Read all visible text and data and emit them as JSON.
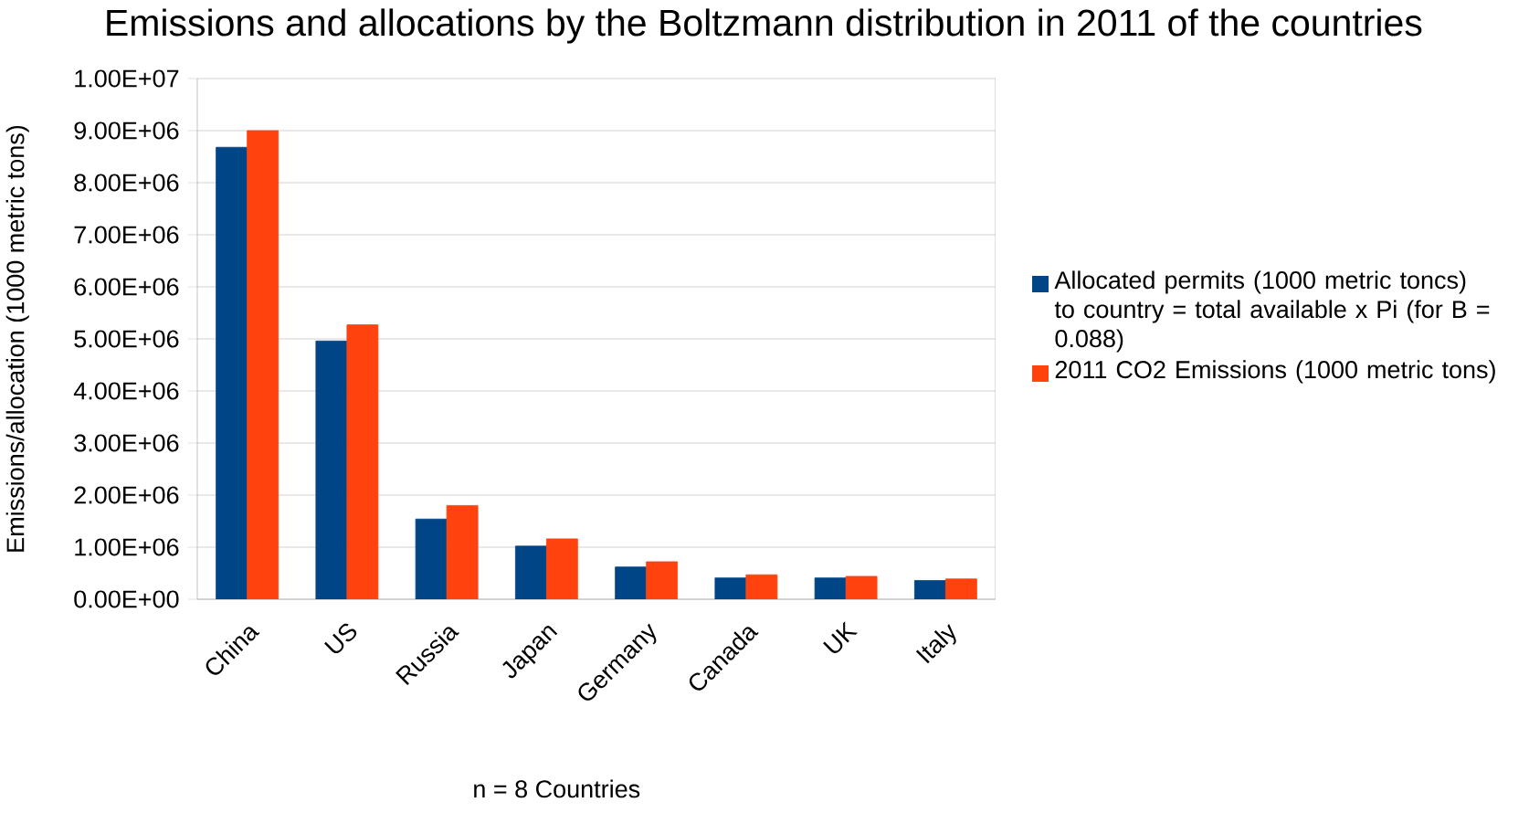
{
  "chart_data": {
    "type": "bar",
    "title": "Emissions and allocations by the Boltzmann distribution in 2011 of the countries",
    "xlabel": "n = 8 Countries",
    "ylabel": "Emissions/allocation (1000 metric tons)",
    "categories": [
      "China",
      "US",
      "Russia",
      "Japan",
      "Germany",
      "Canada",
      "UK",
      "Italy"
    ],
    "series": [
      {
        "name": "Allocated permits (1000 metric toncs) to country = total available x Pi (for B = 0.088)",
        "color": "#004586",
        "values": [
          8680000,
          4960000,
          1540000,
          1020000,
          620000,
          410000,
          410000,
          360000
        ]
      },
      {
        "name": "2011 CO2 Emissions (1000 metric tons)",
        "color": "#ff420e",
        "values": [
          9000000,
          5270000,
          1800000,
          1160000,
          720000,
          470000,
          440000,
          390000
        ]
      }
    ],
    "ylim": [
      0,
      10000000
    ],
    "yticks": [
      {
        "value": 0,
        "label": "0.00E+00"
      },
      {
        "value": 1000000,
        "label": "1.00E+06"
      },
      {
        "value": 2000000,
        "label": "2.00E+06"
      },
      {
        "value": 3000000,
        "label": "3.00E+06"
      },
      {
        "value": 4000000,
        "label": "4.00E+06"
      },
      {
        "value": 5000000,
        "label": "5.00E+06"
      },
      {
        "value": 6000000,
        "label": "6.00E+06"
      },
      {
        "value": 7000000,
        "label": "7.00E+06"
      },
      {
        "value": 8000000,
        "label": "8.00E+06"
      },
      {
        "value": 9000000,
        "label": "9.00E+06"
      },
      {
        "value": 10000000,
        "label": "1.00E+07"
      }
    ],
    "grid": "y",
    "legend": "right"
  }
}
